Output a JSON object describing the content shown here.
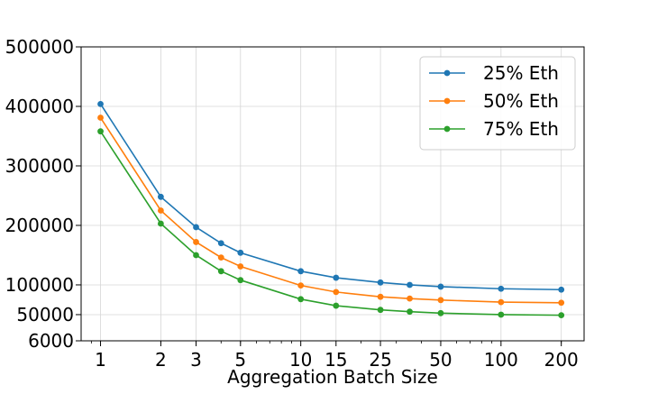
{
  "chart_data": {
    "type": "line",
    "title": "",
    "xlabel": "Aggregation Batch Size",
    "ylabel": "",
    "x_scale": "log",
    "xlim": [
      0.8,
      260
    ],
    "ylim": [
      6000,
      500000
    ],
    "x": [
      1,
      2,
      3,
      4,
      5,
      10,
      15,
      25,
      35,
      50,
      100,
      200
    ],
    "xticks": [
      1,
      2,
      3,
      5,
      10,
      15,
      25,
      50,
      100,
      200
    ],
    "xtick_labels": [
      "1",
      "2",
      "3",
      "5",
      "10",
      "15",
      "25",
      "50",
      "100",
      "200"
    ],
    "yticks": [
      6000,
      50000,
      100000,
      200000,
      300000,
      400000,
      500000
    ],
    "ytick_labels": [
      "6000",
      "50000",
      "100000",
      "200000",
      "300000",
      "400000",
      "500000"
    ],
    "grid": true,
    "legend_position": "top-right",
    "series": [
      {
        "name": "25% Eth",
        "color": "#1f77b4",
        "values": [
          404000,
          248000,
          197000,
          170000,
          154000,
          123000,
          112000,
          104000,
          100000,
          97000,
          93500,
          92000
        ]
      },
      {
        "name": "50% Eth",
        "color": "#ff7f0e",
        "values": [
          381000,
          225000,
          172000,
          146000,
          131000,
          99000,
          88000,
          80000,
          77000,
          74500,
          71000,
          70000
        ]
      },
      {
        "name": "75% Eth",
        "color": "#2ca02c",
        "values": [
          358000,
          203000,
          150000,
          123000,
          108000,
          76000,
          65000,
          58000,
          55000,
          52500,
          50000,
          49000
        ]
      }
    ]
  }
}
